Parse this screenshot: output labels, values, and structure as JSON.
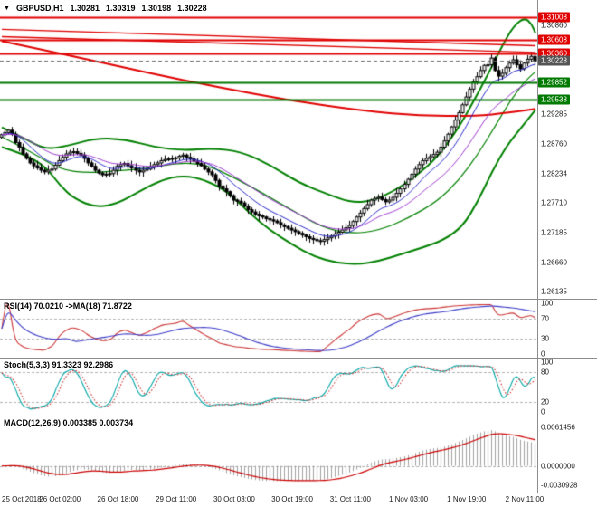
{
  "header": {
    "dropdown_glyph": "▼",
    "symbol": "GBPUSD,H1",
    "open": "1.30281",
    "high": "1.30319",
    "low": "1.30198",
    "close": "1.30228"
  },
  "colors": {
    "resistance": "#e00000",
    "support": "#007a00",
    "bands": "#008000",
    "red_line": "#e00000",
    "current_badge": "#555555",
    "rsi_line": "#cc3333",
    "rsi_ma": "#3c3cc8",
    "stoch_k": "#00a5a5",
    "stoch_d": "#d03030",
    "macd_hist": "#a0a0a0",
    "macd_signal": "#cc0000",
    "dashed_level": "#b0b0b0",
    "candle_up": "#ffffff",
    "candle_down": "#000000"
  },
  "chart_data": {
    "type": "candlestick",
    "symbol": "GBPUSD",
    "timeframe": "H1",
    "main": {
      "price_range": [
        1.2601,
        1.3131
      ],
      "first_open": 1.2888,
      "closes": [
        1.2892,
        1.2896,
        1.29,
        1.2893,
        1.2878,
        1.287,
        1.2858,
        1.285,
        1.2842,
        1.2837,
        1.2833,
        1.2829,
        1.2826,
        1.2829,
        1.2831,
        1.2838,
        1.2846,
        1.2852,
        1.2858,
        1.2861,
        1.2862,
        1.2859,
        1.2856,
        1.285,
        1.2842,
        1.2836,
        1.2829,
        1.2824,
        1.2821,
        1.2822,
        1.2823,
        1.2829,
        1.2836,
        1.2839,
        1.2841,
        1.2837,
        1.2833,
        1.2829,
        1.2826,
        1.2829,
        1.2831,
        1.2835,
        1.2839,
        1.2842,
        1.2846,
        1.2848,
        1.2849,
        1.285,
        1.2851,
        1.2854,
        1.2856,
        1.2852,
        1.2849,
        1.2845,
        1.2841,
        1.2837,
        1.2831,
        1.2826,
        1.2821,
        1.2811,
        1.2801,
        1.2796,
        1.2791,
        1.2784,
        1.2776,
        1.2774,
        1.2771,
        1.2765,
        1.2759,
        1.2755,
        1.2751,
        1.2748,
        1.2746,
        1.2743,
        1.2741,
        1.2739,
        1.2736,
        1.2732,
        1.2729,
        1.2726,
        1.2723,
        1.272,
        1.2717,
        1.2714,
        1.2711,
        1.2708,
        1.2706,
        1.2704,
        1.2703,
        1.2706,
        1.2709,
        1.2712,
        1.2716,
        1.2719,
        1.2723,
        1.2727,
        1.2731,
        1.2738,
        1.2746,
        1.2753,
        1.2761,
        1.2768,
        1.2776,
        1.2779,
        1.2781,
        1.2777,
        1.2773,
        1.2776,
        1.2781,
        1.2788,
        1.2796,
        1.2804,
        1.2813,
        1.2822,
        1.2831,
        1.2839,
        1.2846,
        1.285,
        1.2853,
        1.2857,
        1.2861,
        1.287,
        1.2881,
        1.2893,
        1.2906,
        1.2918,
        1.2931,
        1.2945,
        1.2959,
        1.2973,
        1.2986,
        1.2995,
        1.3006,
        1.3015,
        1.3016,
        1.3028,
        1.3006,
        1.2996,
        1.3001,
        1.3011,
        1.3019,
        1.3025,
        1.3016,
        1.3009,
        1.3019,
        1.3026,
        1.3031,
        1.30228
      ],
      "bands": {
        "upper": [
          [
            0,
            1.2905
          ],
          [
            6,
            1.2886
          ],
          [
            12,
            1.2866
          ],
          [
            18,
            1.2872
          ],
          [
            26,
            1.2886
          ],
          [
            34,
            1.2884
          ],
          [
            42,
            1.287
          ],
          [
            50,
            1.2864
          ],
          [
            58,
            1.2868
          ],
          [
            66,
            1.2862
          ],
          [
            74,
            1.2838
          ],
          [
            82,
            1.2806
          ],
          [
            90,
            1.2786
          ],
          [
            96,
            1.2772
          ],
          [
            102,
            1.2774
          ],
          [
            108,
            1.2792
          ],
          [
            114,
            1.2818
          ],
          [
            120,
            1.2852
          ],
          [
            126,
            1.2906
          ],
          [
            130,
            1.2952
          ],
          [
            134,
            1.3
          ],
          [
            138,
            1.3052
          ],
          [
            141,
            1.3085
          ],
          [
            144,
            1.31
          ],
          [
            146,
            1.3088
          ],
          [
            147,
            1.3072
          ]
        ],
        "middle": [
          [
            0,
            1.2888
          ],
          [
            8,
            1.2862
          ],
          [
            16,
            1.283
          ],
          [
            24,
            1.2824
          ],
          [
            32,
            1.2828
          ],
          [
            40,
            1.2832
          ],
          [
            48,
            1.2842
          ],
          [
            56,
            1.284
          ],
          [
            64,
            1.2816
          ],
          [
            72,
            1.2788
          ],
          [
            80,
            1.2758
          ],
          [
            88,
            1.2728
          ],
          [
            96,
            1.2716
          ],
          [
            104,
            1.2722
          ],
          [
            112,
            1.2744
          ],
          [
            120,
            1.2774
          ],
          [
            126,
            1.2812
          ],
          [
            131,
            1.2856
          ],
          [
            136,
            1.2908
          ],
          [
            140,
            1.2952
          ],
          [
            144,
            1.2986
          ],
          [
            147,
            1.3004
          ]
        ],
        "lower": [
          [
            0,
            1.287
          ],
          [
            6,
            1.2858
          ],
          [
            12,
            1.2836
          ],
          [
            16,
            1.2802
          ],
          [
            20,
            1.2778
          ],
          [
            26,
            1.2763
          ],
          [
            32,
            1.277
          ],
          [
            38,
            1.2792
          ],
          [
            44,
            1.2812
          ],
          [
            50,
            1.282
          ],
          [
            56,
            1.2812
          ],
          [
            62,
            1.2792
          ],
          [
            68,
            1.2754
          ],
          [
            74,
            1.2722
          ],
          [
            80,
            1.2697
          ],
          [
            86,
            1.2676
          ],
          [
            92,
            1.2665
          ],
          [
            98,
            1.2662
          ],
          [
            104,
            1.2668
          ],
          [
            110,
            1.268
          ],
          [
            116,
            1.2692
          ],
          [
            122,
            1.2706
          ],
          [
            127,
            1.273
          ],
          [
            131,
            1.2772
          ],
          [
            135,
            1.2826
          ],
          [
            139,
            1.2872
          ],
          [
            143,
            1.2904
          ],
          [
            147,
            1.2936
          ]
        ]
      },
      "red_ma": [
        [
          0,
          1.3058
        ],
        [
          20,
          1.3031
        ],
        [
          40,
          1.3002
        ],
        [
          60,
          1.2976
        ],
        [
          80,
          1.2952
        ],
        [
          100,
          1.2934
        ],
        [
          115,
          1.2926
        ],
        [
          130,
          1.2925
        ],
        [
          140,
          1.2931
        ],
        [
          147,
          1.2938
        ]
      ],
      "overlay_mas": [
        {
          "period": 10,
          "color": "#2525c8"
        },
        {
          "period": 21,
          "color": "#9932cc"
        }
      ],
      "trendlines": [
        {
          "from": [
            0,
            1.3079
          ],
          "to": [
            147,
            1.305
          ]
        },
        {
          "from": [
            0,
            1.3066
          ],
          "to": [
            147,
            1.3038
          ]
        }
      ],
      "levels": [
        {
          "price": 1.31008,
          "label": "1.31008",
          "type": "resistance"
        },
        {
          "price": 1.30608,
          "label": "1.30608",
          "type": "resistance"
        },
        {
          "price": 1.3036,
          "label": "1.30360",
          "type": "resistance"
        },
        {
          "price": 1.29852,
          "label": "1.29852",
          "type": "support"
        },
        {
          "price": 1.29538,
          "label": "1.29538",
          "type": "support"
        }
      ],
      "current": {
        "price": 1.30228,
        "label": "1.30228"
      },
      "price_axis_ticks": [
        "1.30860",
        "1.29285",
        "1.28760",
        "1.28234",
        "1.27710",
        "1.27185",
        "1.26660",
        "1.26135"
      ]
    },
    "rsi": {
      "label": "RSI(14) 70.0210 ->MA(18) 71.8722",
      "period": 14,
      "ma_period": 18,
      "value": 70.021,
      "ma_value": 71.8722,
      "levels": [
        70,
        30
      ],
      "axis_labels": [
        "100",
        "70",
        "30",
        "0"
      ],
      "axis_values": [
        100,
        70,
        30,
        0
      ],
      "range": [
        -8,
        108
      ]
    },
    "stoch": {
      "label": "Stoch(5,3,3) 91.3323 92.2986",
      "k_period": 5,
      "slowing": 3,
      "d_period": 3,
      "k_value": 91.3323,
      "d_value": 92.2986,
      "levels": [
        80,
        20
      ],
      "axis_labels": [
        "100",
        "80",
        "20",
        "0"
      ],
      "axis_values": [
        100,
        80,
        20,
        0
      ],
      "range": [
        -8,
        108
      ]
    },
    "macd": {
      "label": "MACD(12,26,9) 0.003385 0.003734",
      "fast": 12,
      "slow": 26,
      "signal": 9,
      "macd_value": 0.003385,
      "signal_value": 0.003734,
      "axis_labels": [
        {
          "text": "0.0061456",
          "value": 0.0061456
        },
        {
          "text": "0.0000000",
          "value": 0.0
        },
        {
          "text": "-0.0030928",
          "value": -0.0030928
        }
      ],
      "range": [
        -0.0042,
        0.0078
      ]
    },
    "time_axis": [
      {
        "bar": 0,
        "label": "25 Oct 2018"
      },
      {
        "bar": 16,
        "label": "26 Oct 02:00"
      },
      {
        "bar": 32,
        "label": "26 Oct 18:00"
      },
      {
        "bar": 48,
        "label": "29 Oct 11:00"
      },
      {
        "bar": 64,
        "label": "30 Oct 03:00"
      },
      {
        "bar": 80,
        "label": "30 Oct 19:00"
      },
      {
        "bar": 96,
        "label": "31 Oct 11:00"
      },
      {
        "bar": 112,
        "label": "1 Nov 03:00"
      },
      {
        "bar": 128,
        "label": "1 Nov 19:00"
      },
      {
        "bar": 144,
        "label": "2 Nov 11:00"
      }
    ]
  }
}
